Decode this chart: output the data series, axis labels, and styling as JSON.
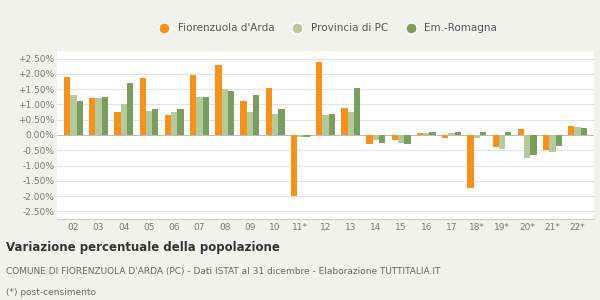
{
  "categories": [
    "02",
    "03",
    "04",
    "05",
    "06",
    "07",
    "08",
    "09",
    "10",
    "11*",
    "12",
    "13",
    "14",
    "15",
    "16",
    "17",
    "18*",
    "19*",
    "20*",
    "21*",
    "22*"
  ],
  "fiorenzuola": [
    1.9,
    1.2,
    0.75,
    1.85,
    0.65,
    1.95,
    2.3,
    1.1,
    1.55,
    -2.0,
    2.4,
    0.9,
    -0.3,
    -0.15,
    0.05,
    -0.1,
    -1.75,
    -0.4,
    0.2,
    -0.5,
    0.3
  ],
  "provincia": [
    1.3,
    1.2,
    1.0,
    0.8,
    0.75,
    1.25,
    1.5,
    0.75,
    0.7,
    -0.05,
    0.65,
    0.75,
    -0.15,
    -0.25,
    0.05,
    0.05,
    -0.1,
    -0.45,
    -0.75,
    -0.55,
    0.25
  ],
  "emromagna": [
    1.1,
    1.25,
    1.7,
    0.85,
    0.85,
    1.25,
    1.45,
    1.3,
    0.85,
    -0.05,
    0.7,
    1.55,
    -0.25,
    -0.3,
    0.1,
    0.1,
    0.1,
    0.1,
    -0.65,
    -0.35,
    0.22
  ],
  "color_fiorenzuola": "#f5921e",
  "color_provincia": "#b5c99a",
  "color_emromagna": "#7a9e5f",
  "legend_labels": [
    "Fiorenzuola d'Arda",
    "Provincia di PC",
    "Em.-Romagna"
  ],
  "title1": "Variazione percentuale della popolazione",
  "subtitle": "COMUNE DI FIORENZUOLA D'ARDA (PC) - Dati ISTAT al 31 dicembre - Elaborazione TUTTITALIA.IT",
  "footnote": "(*) post-censimento",
  "ylim": [
    -2.75,
    2.75
  ],
  "yticks": [
    -2.5,
    -2.0,
    -1.5,
    -1.0,
    -0.5,
    0.0,
    0.5,
    1.0,
    1.5,
    2.0,
    2.5
  ],
  "bg_color": "#f2f2ed",
  "plot_bg_color": "#ffffff"
}
